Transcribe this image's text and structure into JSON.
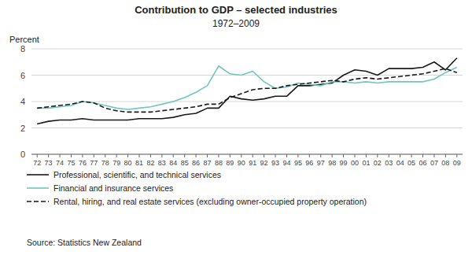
{
  "chart_data": {
    "type": "line",
    "title": "Contribution to GDP – selected industries",
    "subtitle": "1972–2009",
    "y_label": "Percent",
    "source": "Source: Statistics New Zealand",
    "categories": [
      "72",
      "73",
      "74",
      "75",
      "76",
      "77",
      "78",
      "79",
      "80",
      "81",
      "82",
      "83",
      "84",
      "85",
      "86",
      "87",
      "88",
      "89",
      "90",
      "91",
      "92",
      "93",
      "94",
      "95",
      "96",
      "97",
      "98",
      "99",
      "00",
      "01",
      "02",
      "03",
      "04",
      "05",
      "06",
      "07",
      "08",
      "09"
    ],
    "series": [
      {
        "name": "Professional, scientific, and technical services",
        "color": "#1a1a1a",
        "line_style": "solid",
        "values": [
          2.3,
          2.5,
          2.6,
          2.6,
          2.7,
          2.6,
          2.6,
          2.6,
          2.6,
          2.7,
          2.7,
          2.7,
          2.8,
          3.0,
          3.1,
          3.5,
          3.5,
          4.4,
          4.2,
          4.1,
          4.2,
          4.4,
          4.4,
          5.2,
          5.2,
          5.3,
          5.4,
          6.0,
          6.4,
          6.3,
          6.0,
          6.5,
          6.5,
          6.5,
          6.6,
          7.0,
          6.4,
          7.3
        ]
      },
      {
        "name": "Financial and insurance services",
        "color": "#72c6c0",
        "line_style": "solid",
        "values": [
          3.5,
          3.5,
          3.6,
          3.7,
          4.0,
          3.9,
          3.7,
          3.5,
          3.4,
          3.5,
          3.6,
          3.8,
          4.0,
          4.3,
          4.7,
          5.2,
          6.7,
          6.1,
          6.0,
          6.3,
          5.5,
          5.0,
          5.1,
          5.4,
          5.3,
          5.2,
          5.5,
          5.5,
          5.4,
          5.5,
          5.4,
          5.5,
          5.5,
          5.5,
          5.5,
          5.7,
          6.2,
          6.6
        ]
      },
      {
        "name": "Rental, hiring, and real estate services (excluding owner-occupied property operation)",
        "color": "#1a1a1a",
        "line_style": "dashed",
        "values": [
          3.5,
          3.6,
          3.7,
          3.8,
          4.0,
          3.9,
          3.5,
          3.3,
          3.2,
          3.2,
          3.2,
          3.3,
          3.4,
          3.5,
          3.6,
          3.8,
          3.8,
          4.3,
          4.6,
          4.9,
          5.0,
          5.0,
          5.2,
          5.3,
          5.4,
          5.5,
          5.6,
          5.5,
          5.7,
          5.8,
          5.7,
          5.8,
          5.9,
          6.0,
          6.1,
          6.3,
          6.5,
          6.2
        ]
      }
    ],
    "ylim": [
      0,
      8
    ],
    "yticks": [
      0,
      2,
      4,
      6,
      8
    ],
    "grid": true,
    "legend": "bottom"
  }
}
